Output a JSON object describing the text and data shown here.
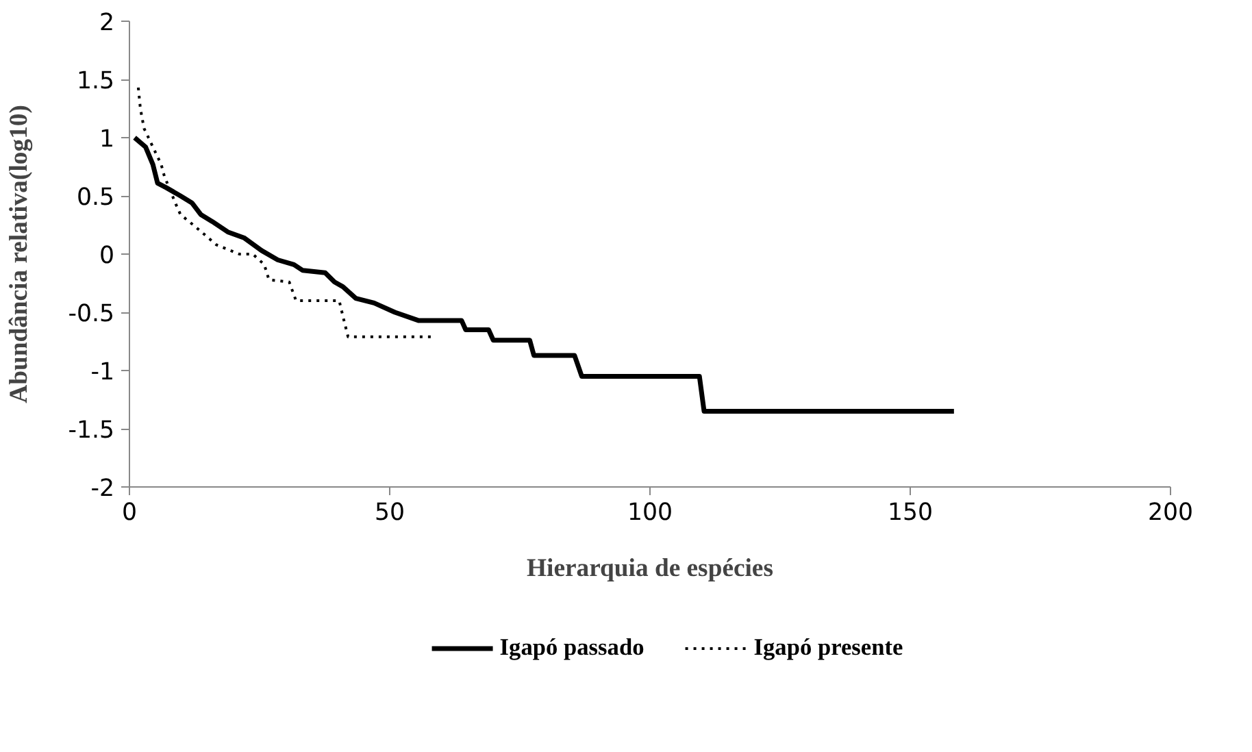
{
  "chart_data": {
    "type": "line",
    "xlabel": "Hierarquia de espécies",
    "ylabel": "Abundância relativa(log10)",
    "xlim": [
      0,
      200
    ],
    "xticks": [
      0,
      50,
      100,
      150,
      200
    ],
    "ylim": [
      -2,
      2
    ],
    "yticks": [
      -2,
      -1.5,
      -1,
      -0.5,
      0,
      0.5,
      1,
      1.5,
      2
    ],
    "grid": false,
    "legend": "bottom",
    "series": [
      {
        "name": "Igapó passado",
        "color": "#000000",
        "line_style": "solid",
        "x": [
          1,
          3.1,
          4.5,
          5.4,
          7.1,
          9.8,
          12,
          13.7,
          15.9,
          18.9,
          22,
          25.4,
          28.5,
          31.6,
          33.3,
          37.6,
          39.4,
          41,
          43.5,
          47,
          51,
          55.5,
          63.8,
          64.6,
          69,
          69.9,
          76.9,
          77.7,
          85.5,
          86.9,
          109.5,
          110.4,
          158.4
        ],
        "values": [
          1.0,
          0.92,
          0.77,
          0.61,
          0.57,
          0.5,
          0.44,
          0.34,
          0.28,
          0.19,
          0.14,
          0.03,
          -0.05,
          -0.09,
          -0.14,
          -0.16,
          -0.24,
          -0.28,
          -0.38,
          -0.42,
          -0.5,
          -0.57,
          -0.57,
          -0.65,
          -0.65,
          -0.74,
          -0.74,
          -0.87,
          -0.87,
          -1.05,
          -1.05,
          -1.35,
          -1.35
        ]
      },
      {
        "name": "Igapó presente",
        "color": "#000000",
        "line_style": "dotted",
        "x": [
          1.7,
          2.1,
          2.8,
          6.1,
          6.7,
          8.9,
          9.8,
          12.8,
          16.7,
          21.1,
          23.7,
          25.9,
          26.8,
          30.7,
          32,
          40.3,
          41.1,
          42,
          58.6
        ],
        "values": [
          1.43,
          1.25,
          1.08,
          0.77,
          0.67,
          0.43,
          0.34,
          0.23,
          0.08,
          0.0,
          0.0,
          -0.09,
          -0.22,
          -0.24,
          -0.4,
          -0.4,
          -0.55,
          -0.71,
          -0.71
        ]
      }
    ]
  }
}
